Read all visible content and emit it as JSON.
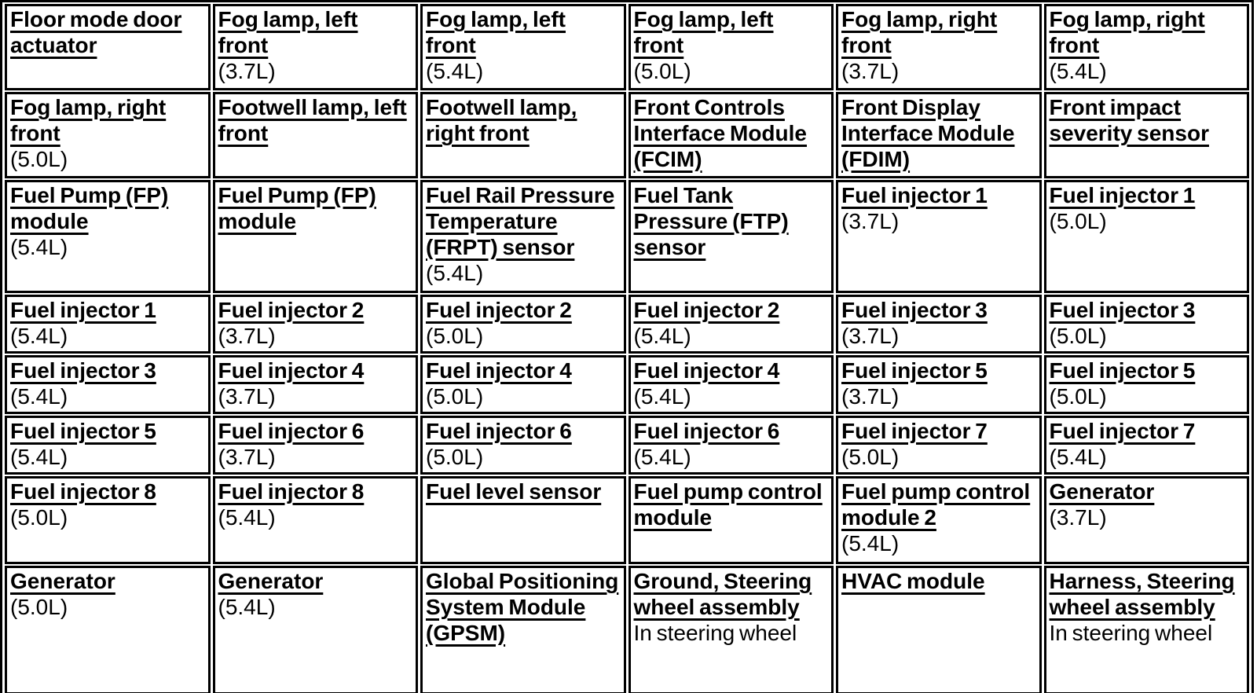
{
  "colors": {
    "background": "#ffffff",
    "border": "#000000",
    "link_text": "#000000",
    "note_text": "#000000"
  },
  "table": {
    "rows": [
      {
        "cells": [
          {
            "title": "Floor mode door actuator",
            "note": ""
          },
          {
            "title": "Fog lamp, left front",
            "note": "(3.7L)"
          },
          {
            "title": "Fog lamp, left front",
            "note": "(5.4L)"
          },
          {
            "title": "Fog lamp, left front",
            "note": "(5.0L)"
          },
          {
            "title": "Fog lamp, right front",
            "note": "(3.7L)"
          },
          {
            "title": "Fog lamp, right front",
            "note": "(5.4L)"
          }
        ]
      },
      {
        "cells": [
          {
            "title": "Fog lamp, right front",
            "note": "(5.0L)"
          },
          {
            "title": "Footwell lamp, left front",
            "note": ""
          },
          {
            "title": "Footwell lamp, right front",
            "note": ""
          },
          {
            "title": "Front Controls Interface Module (FCIM)",
            "note": ""
          },
          {
            "title": "Front Display Interface Module (FDIM)",
            "note": ""
          },
          {
            "title": "Front impact severity sensor",
            "note": ""
          }
        ]
      },
      {
        "cells": [
          {
            "title": "Fuel Pump (FP) module",
            "note": "(5.4L)"
          },
          {
            "title": "Fuel Pump (FP) module",
            "note": ""
          },
          {
            "title": "Fuel Rail Pressure Temperature (FRPT) sensor",
            "note": "(5.4L)"
          },
          {
            "title": "Fuel Tank Pressure (FTP) sensor",
            "note": ""
          },
          {
            "title": "Fuel injector 1",
            "note": "(3.7L)"
          },
          {
            "title": "Fuel injector 1",
            "note": "(5.0L)"
          }
        ]
      },
      {
        "cells": [
          {
            "title": "Fuel injector 1",
            "note": "(5.4L)"
          },
          {
            "title": "Fuel injector 2",
            "note": "(3.7L)"
          },
          {
            "title": "Fuel injector 2",
            "note": "(5.0L)"
          },
          {
            "title": "Fuel injector 2",
            "note": "(5.4L)"
          },
          {
            "title": "Fuel injector 3",
            "note": "(3.7L)"
          },
          {
            "title": "Fuel injector 3",
            "note": "(5.0L)"
          }
        ]
      },
      {
        "cells": [
          {
            "title": "Fuel injector 3",
            "note": "(5.4L)"
          },
          {
            "title": "Fuel injector 4",
            "note": "(3.7L)"
          },
          {
            "title": "Fuel injector 4",
            "note": "(5.0L)"
          },
          {
            "title": "Fuel injector 4",
            "note": "(5.4L)"
          },
          {
            "title": "Fuel injector 5",
            "note": "(3.7L)"
          },
          {
            "title": "Fuel injector 5",
            "note": "(5.0L)"
          }
        ]
      },
      {
        "cells": [
          {
            "title": "Fuel injector 5",
            "note": "(5.4L)"
          },
          {
            "title": "Fuel injector 6",
            "note": "(3.7L)"
          },
          {
            "title": "Fuel injector 6",
            "note": "(5.0L)"
          },
          {
            "title": "Fuel injector 6",
            "note": "(5.4L)"
          },
          {
            "title": "Fuel injector 7",
            "note": "(5.0L)"
          },
          {
            "title": "Fuel injector 7",
            "note": "(5.4L)"
          }
        ]
      },
      {
        "cells": [
          {
            "title": "Fuel injector 8",
            "note": "(5.0L)"
          },
          {
            "title": "Fuel injector 8",
            "note": "(5.4L)"
          },
          {
            "title": "Fuel level sensor",
            "note": ""
          },
          {
            "title": "Fuel pump control module",
            "note": ""
          },
          {
            "title": "Fuel pump control module 2",
            "note": "(5.4L)"
          },
          {
            "title": "Generator",
            "note": "(3.7L)"
          }
        ]
      },
      {
        "cells": [
          {
            "title": "Generator",
            "note": "(5.0L)"
          },
          {
            "title": "Generator",
            "note": "(5.4L)"
          },
          {
            "title": "Global Positioning System Module (GPSM)",
            "note": ""
          },
          {
            "title": "Ground, Steering wheel assembly",
            "note": "In steering wheel"
          },
          {
            "title": "HVAC module",
            "note": ""
          },
          {
            "title": "Harness, Steering wheel assembly",
            "note": "In steering wheel"
          }
        ]
      }
    ]
  }
}
